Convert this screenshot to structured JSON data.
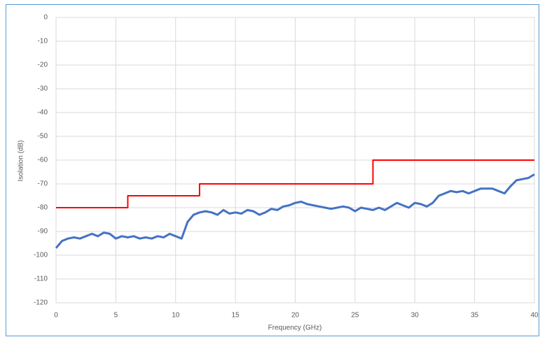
{
  "chart_data": {
    "type": "line",
    "xlabel": "Frequency (GHz)",
    "ylabel": "Isolation (dB)",
    "xlim": [
      0,
      40
    ],
    "xticks": [
      0,
      5,
      10,
      15,
      20,
      25,
      30,
      35,
      40
    ],
    "ylim": [
      -120,
      0
    ],
    "yticks": [
      0,
      -10,
      -20,
      -30,
      -40,
      -50,
      -60,
      -70,
      -80,
      -90,
      -100,
      -110,
      -120
    ],
    "grid": true,
    "series": [
      {
        "color": "#4472c4",
        "x": [
          0,
          0.5,
          1,
          1.5,
          2,
          2.5,
          3,
          3.5,
          4,
          4.5,
          5,
          5.5,
          6,
          6.5,
          7,
          7.5,
          8,
          8.5,
          9,
          9.5,
          10,
          10.5,
          11,
          11.5,
          12,
          12.5,
          13,
          13.5,
          14,
          14.5,
          15,
          15.5,
          16,
          16.5,
          17,
          17.5,
          18,
          18.5,
          19,
          19.5,
          20,
          20.5,
          21,
          21.5,
          22,
          22.5,
          23,
          23.5,
          24,
          24.5,
          25,
          25.5,
          26,
          26.5,
          27,
          27.5,
          28,
          28.5,
          29,
          29.5,
          30,
          30.5,
          31,
          31.5,
          32,
          32.5,
          33,
          33.5,
          34,
          34.5,
          35,
          35.5,
          36,
          36.5,
          37,
          37.5,
          38,
          38.5,
          39,
          39.5,
          40
        ],
        "values": [
          -97,
          -94,
          -93,
          -92.5,
          -93,
          -92,
          -91,
          -92,
          -90.5,
          -91,
          -93,
          -92,
          -92.5,
          -92,
          -93,
          -92.5,
          -93,
          -92,
          -92.5,
          -91,
          -92,
          -93,
          -86,
          -83,
          -82,
          -81.5,
          -82,
          -83,
          -81,
          -82.5,
          -82,
          -82.5,
          -81,
          -81.5,
          -83,
          -82,
          -80.5,
          -81,
          -79.5,
          -79,
          -78,
          -77.5,
          -78.5,
          -79,
          -79.5,
          -80,
          -80.5,
          -80,
          -79.5,
          -80,
          -81.5,
          -80,
          -80.5,
          -81,
          -80,
          -81,
          -79.5,
          -78,
          -79,
          -80,
          -78,
          -78.5,
          -79.5,
          -78,
          -75,
          -74,
          -73,
          -73.5,
          -73,
          -74,
          -73,
          -72,
          -72,
          -72,
          -73,
          -74,
          -71,
          -68.5,
          -68,
          -67.5,
          -66
        ]
      },
      {
        "color": "#ff0000",
        "x": [
          0,
          6,
          6,
          12,
          12,
          26.5,
          26.5,
          40
        ],
        "values": [
          -80,
          -80,
          -75,
          -75,
          -70,
          -70,
          -60,
          -60
        ]
      }
    ]
  }
}
